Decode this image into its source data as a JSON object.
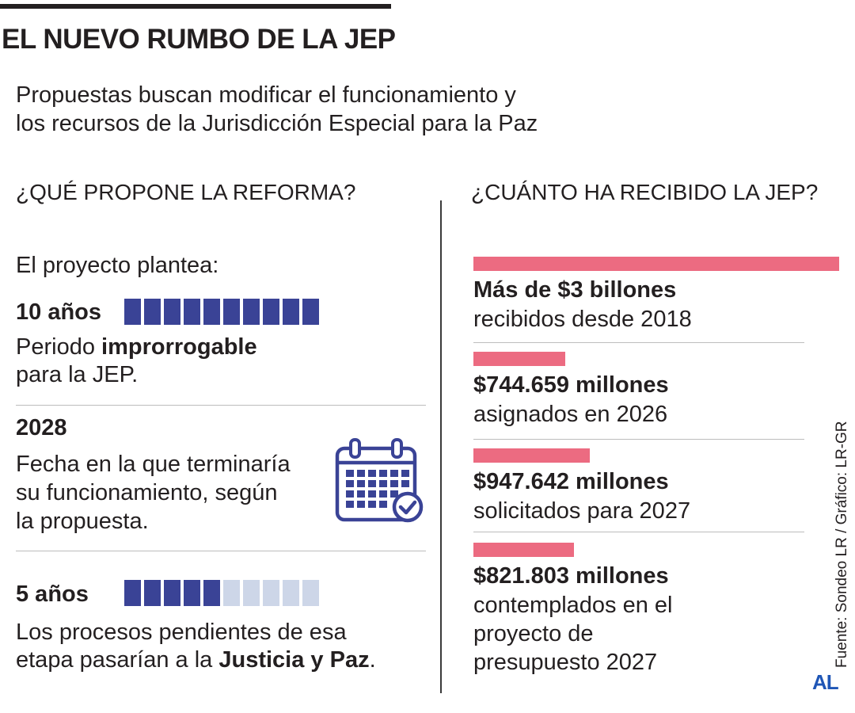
{
  "header": {
    "title": "EL NUEVO RUMBO DE LA JEP",
    "subtitle_line1": "Propuestas buscan modificar el funcionamiento y",
    "subtitle_line2": "los recursos de la Jurisdicción Especial para la Paz"
  },
  "left": {
    "heading": "¿QUÉ PROPONE LA REFORMA?",
    "intro": "El proyecto plantea:",
    "item1": {
      "value": "10 años",
      "desc_pre": "Periodo ",
      "desc_bold": "improrrogable",
      "desc_line2": "para la JEP.",
      "filled": 10,
      "total": 10
    },
    "item2": {
      "value": "2028",
      "line1": "Fecha en la que terminaría",
      "line2": "su funcionamiento, según",
      "line3": "la propuesta.",
      "icon": "calendar-check-icon"
    },
    "item3": {
      "value": "5 años",
      "line1": "Los procesos pendientes de esa",
      "line2_pre": "etapa pasarían a la ",
      "line2_bold": "Justicia y Paz",
      "line2_post": ".",
      "filled": 5,
      "total": 10
    }
  },
  "right": {
    "heading": "¿CUÁNTO HA RECIBIDO LA JEP?"
  },
  "chart_data": {
    "type": "bar",
    "orientation": "horizontal",
    "bar_color": "#ec6b81",
    "bars": [
      {
        "value_label": "Más de $3 billones",
        "desc_lines": [
          "recibidos desde 2018"
        ],
        "value_millions": 3000000
      },
      {
        "value_label": "$744.659 millones",
        "desc_lines": [
          "asignados en 2026"
        ],
        "value_millions": 744659
      },
      {
        "value_label": "$947.642 millones",
        "desc_lines": [
          "solicitados para 2027"
        ],
        "value_millions": 947642
      },
      {
        "value_label": "$821.803 millones",
        "desc_lines": [
          "contemplados en el",
          "proyecto de",
          "presupuesto 2027"
        ],
        "value_millions": 821803
      }
    ]
  },
  "colors": {
    "square_filled": "#3a4396",
    "square_empty": "#cdd6e8",
    "icon": "#3a4396"
  },
  "footer": {
    "source": "Fuente: Sondeo LR / Gráfico: LR-GR",
    "logo": "AL"
  }
}
